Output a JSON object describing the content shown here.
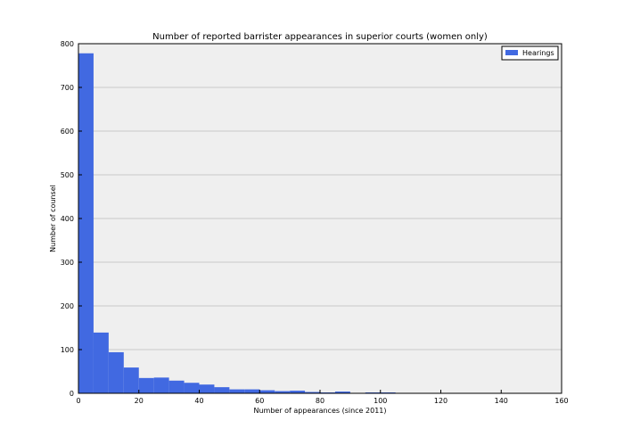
{
  "chart_data": {
    "type": "bar",
    "title": "Number of reported barrister appearances in superior courts (women only)",
    "xlabel": "Number of appearances (since 2011)",
    "ylabel": "Number of counsel",
    "xlim": [
      0,
      160
    ],
    "ylim": [
      0,
      800
    ],
    "xticks": [
      0,
      20,
      40,
      60,
      80,
      100,
      120,
      140,
      160
    ],
    "yticks": [
      0,
      100,
      200,
      300,
      400,
      500,
      600,
      700,
      800
    ],
    "bin_width": 5,
    "grid": true,
    "legend_position": "top-right",
    "series": [
      {
        "name": "Hearings",
        "color": "#4169e1",
        "bin_starts": [
          0,
          5,
          10,
          15,
          20,
          25,
          30,
          35,
          40,
          45,
          50,
          55,
          60,
          65,
          70,
          75,
          80,
          85,
          90,
          95,
          100,
          105,
          110,
          115,
          120,
          125,
          130,
          135,
          140,
          145,
          150
        ],
        "values": [
          778,
          139,
          94,
          59,
          35,
          36,
          29,
          24,
          20,
          14,
          9,
          9,
          7,
          5,
          6,
          3,
          2,
          4,
          1,
          2,
          2,
          1,
          1,
          1,
          1,
          0,
          0,
          1,
          1,
          1,
          1
        ]
      }
    ],
    "plot_background": "#efefef",
    "grid_color": "#c8c8c8"
  }
}
